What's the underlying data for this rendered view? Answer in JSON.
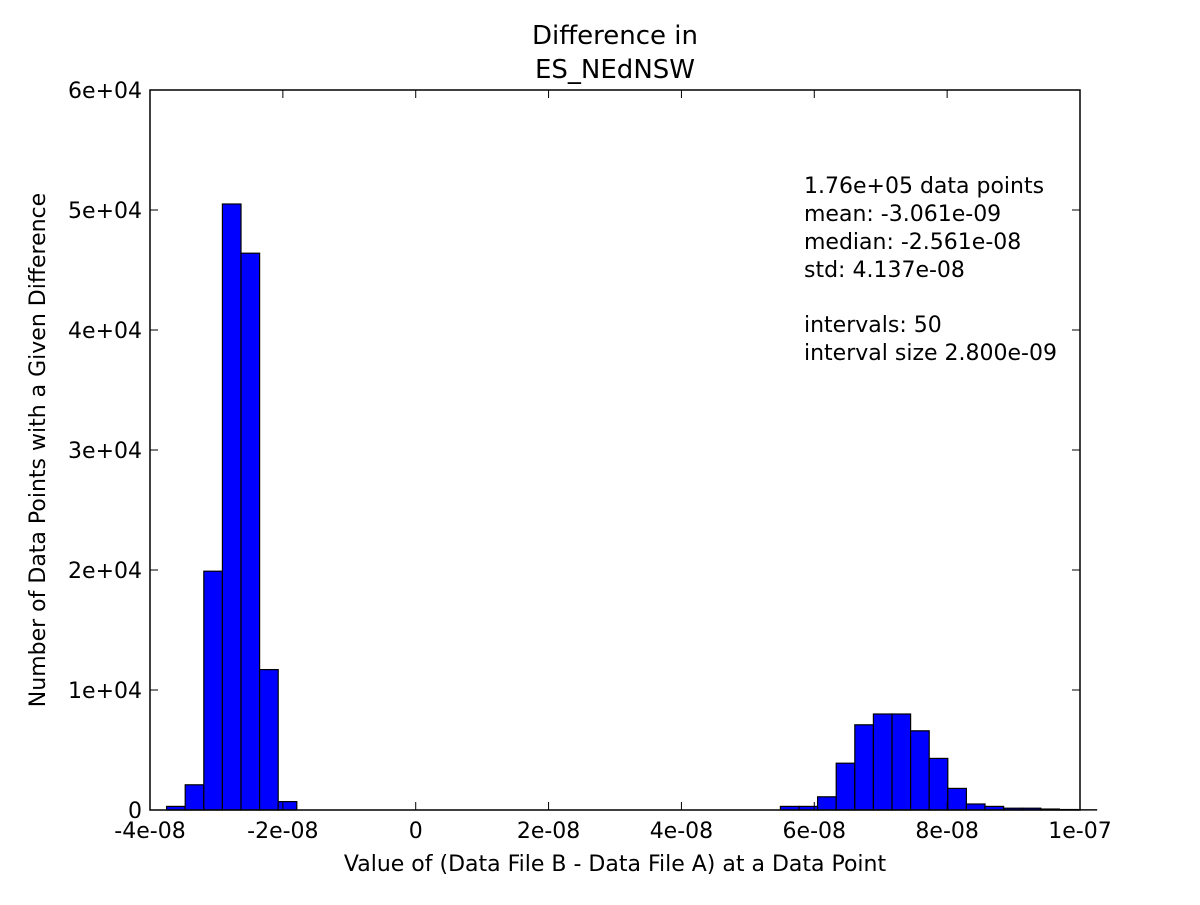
{
  "chart_data": {
    "type": "bar",
    "title_lines": [
      "Difference in",
      "ES_NEdNSW"
    ],
    "xlabel": "Value of (Data File B - Data File A) at a Data Point",
    "ylabel": "Number of Data Points with a Given Difference",
    "xlim": [
      -4e-08,
      1e-07
    ],
    "ylim": [
      0,
      60000
    ],
    "x_ticks": [
      {
        "value": -4e-08,
        "label": "-4e-08"
      },
      {
        "value": -2e-08,
        "label": "-2e-08"
      },
      {
        "value": 0,
        "label": "0"
      },
      {
        "value": 2e-08,
        "label": "2e-08"
      },
      {
        "value": 4e-08,
        "label": "4e-08"
      },
      {
        "value": 6e-08,
        "label": "6e-08"
      },
      {
        "value": 8e-08,
        "label": "8e-08"
      },
      {
        "value": 1e-07,
        "label": "1e-07"
      }
    ],
    "y_ticks": [
      {
        "value": 0,
        "label": "0"
      },
      {
        "value": 10000,
        "label": "1e+04"
      },
      {
        "value": 20000,
        "label": "2e+04"
      },
      {
        "value": 30000,
        "label": "3e+04"
      },
      {
        "value": 40000,
        "label": "4e+04"
      },
      {
        "value": 50000,
        "label": "5e+04"
      },
      {
        "value": 60000,
        "label": "6e+04"
      }
    ],
    "bin_start": -3.75e-08,
    "bin_width": 2.8e-09,
    "values": [
      300,
      2100,
      19900,
      50500,
      46400,
      11700,
      700,
      0,
      0,
      0,
      0,
      0,
      0,
      0,
      0,
      0,
      0,
      0,
      0,
      0,
      0,
      0,
      0,
      0,
      0,
      0,
      0,
      0,
      0,
      0,
      0,
      0,
      0,
      300,
      300,
      1100,
      3900,
      7100,
      8000,
      8000,
      6600,
      4300,
      1800,
      500,
      300,
      150,
      150,
      80,
      40,
      20
    ],
    "bar_color": "#0000ff",
    "annotation_lines": [
      "1.76e+05 data points",
      "mean: -3.061e-09",
      "median: -2.561e-08",
      "std: 4.137e-08",
      "",
      "intervals: 50",
      "interval size 2.800e-09"
    ],
    "grid": false
  }
}
